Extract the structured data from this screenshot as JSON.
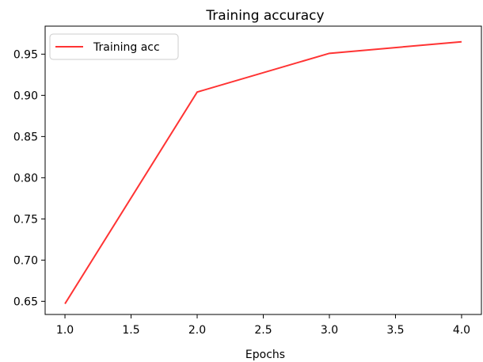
{
  "chart_data": {
    "type": "line",
    "title": "Training accuracy",
    "xlabel": "Epochs",
    "ylabel": "",
    "xlim": [
      0.85,
      4.15
    ],
    "ylim": [
      0.634,
      0.984
    ],
    "x_ticks": [
      "1.0",
      "1.5",
      "2.0",
      "2.5",
      "3.0",
      "3.5",
      "4.0"
    ],
    "y_ticks": [
      "0.65",
      "0.70",
      "0.75",
      "0.80",
      "0.85",
      "0.90",
      "0.95"
    ],
    "grid": false,
    "legend_position": "upper-left",
    "series": [
      {
        "name": "Training acc",
        "color": "#ff3333",
        "x": [
          1.0,
          2.0,
          3.0,
          4.0
        ],
        "y": [
          0.647,
          0.904,
          0.951,
          0.965
        ]
      }
    ]
  }
}
